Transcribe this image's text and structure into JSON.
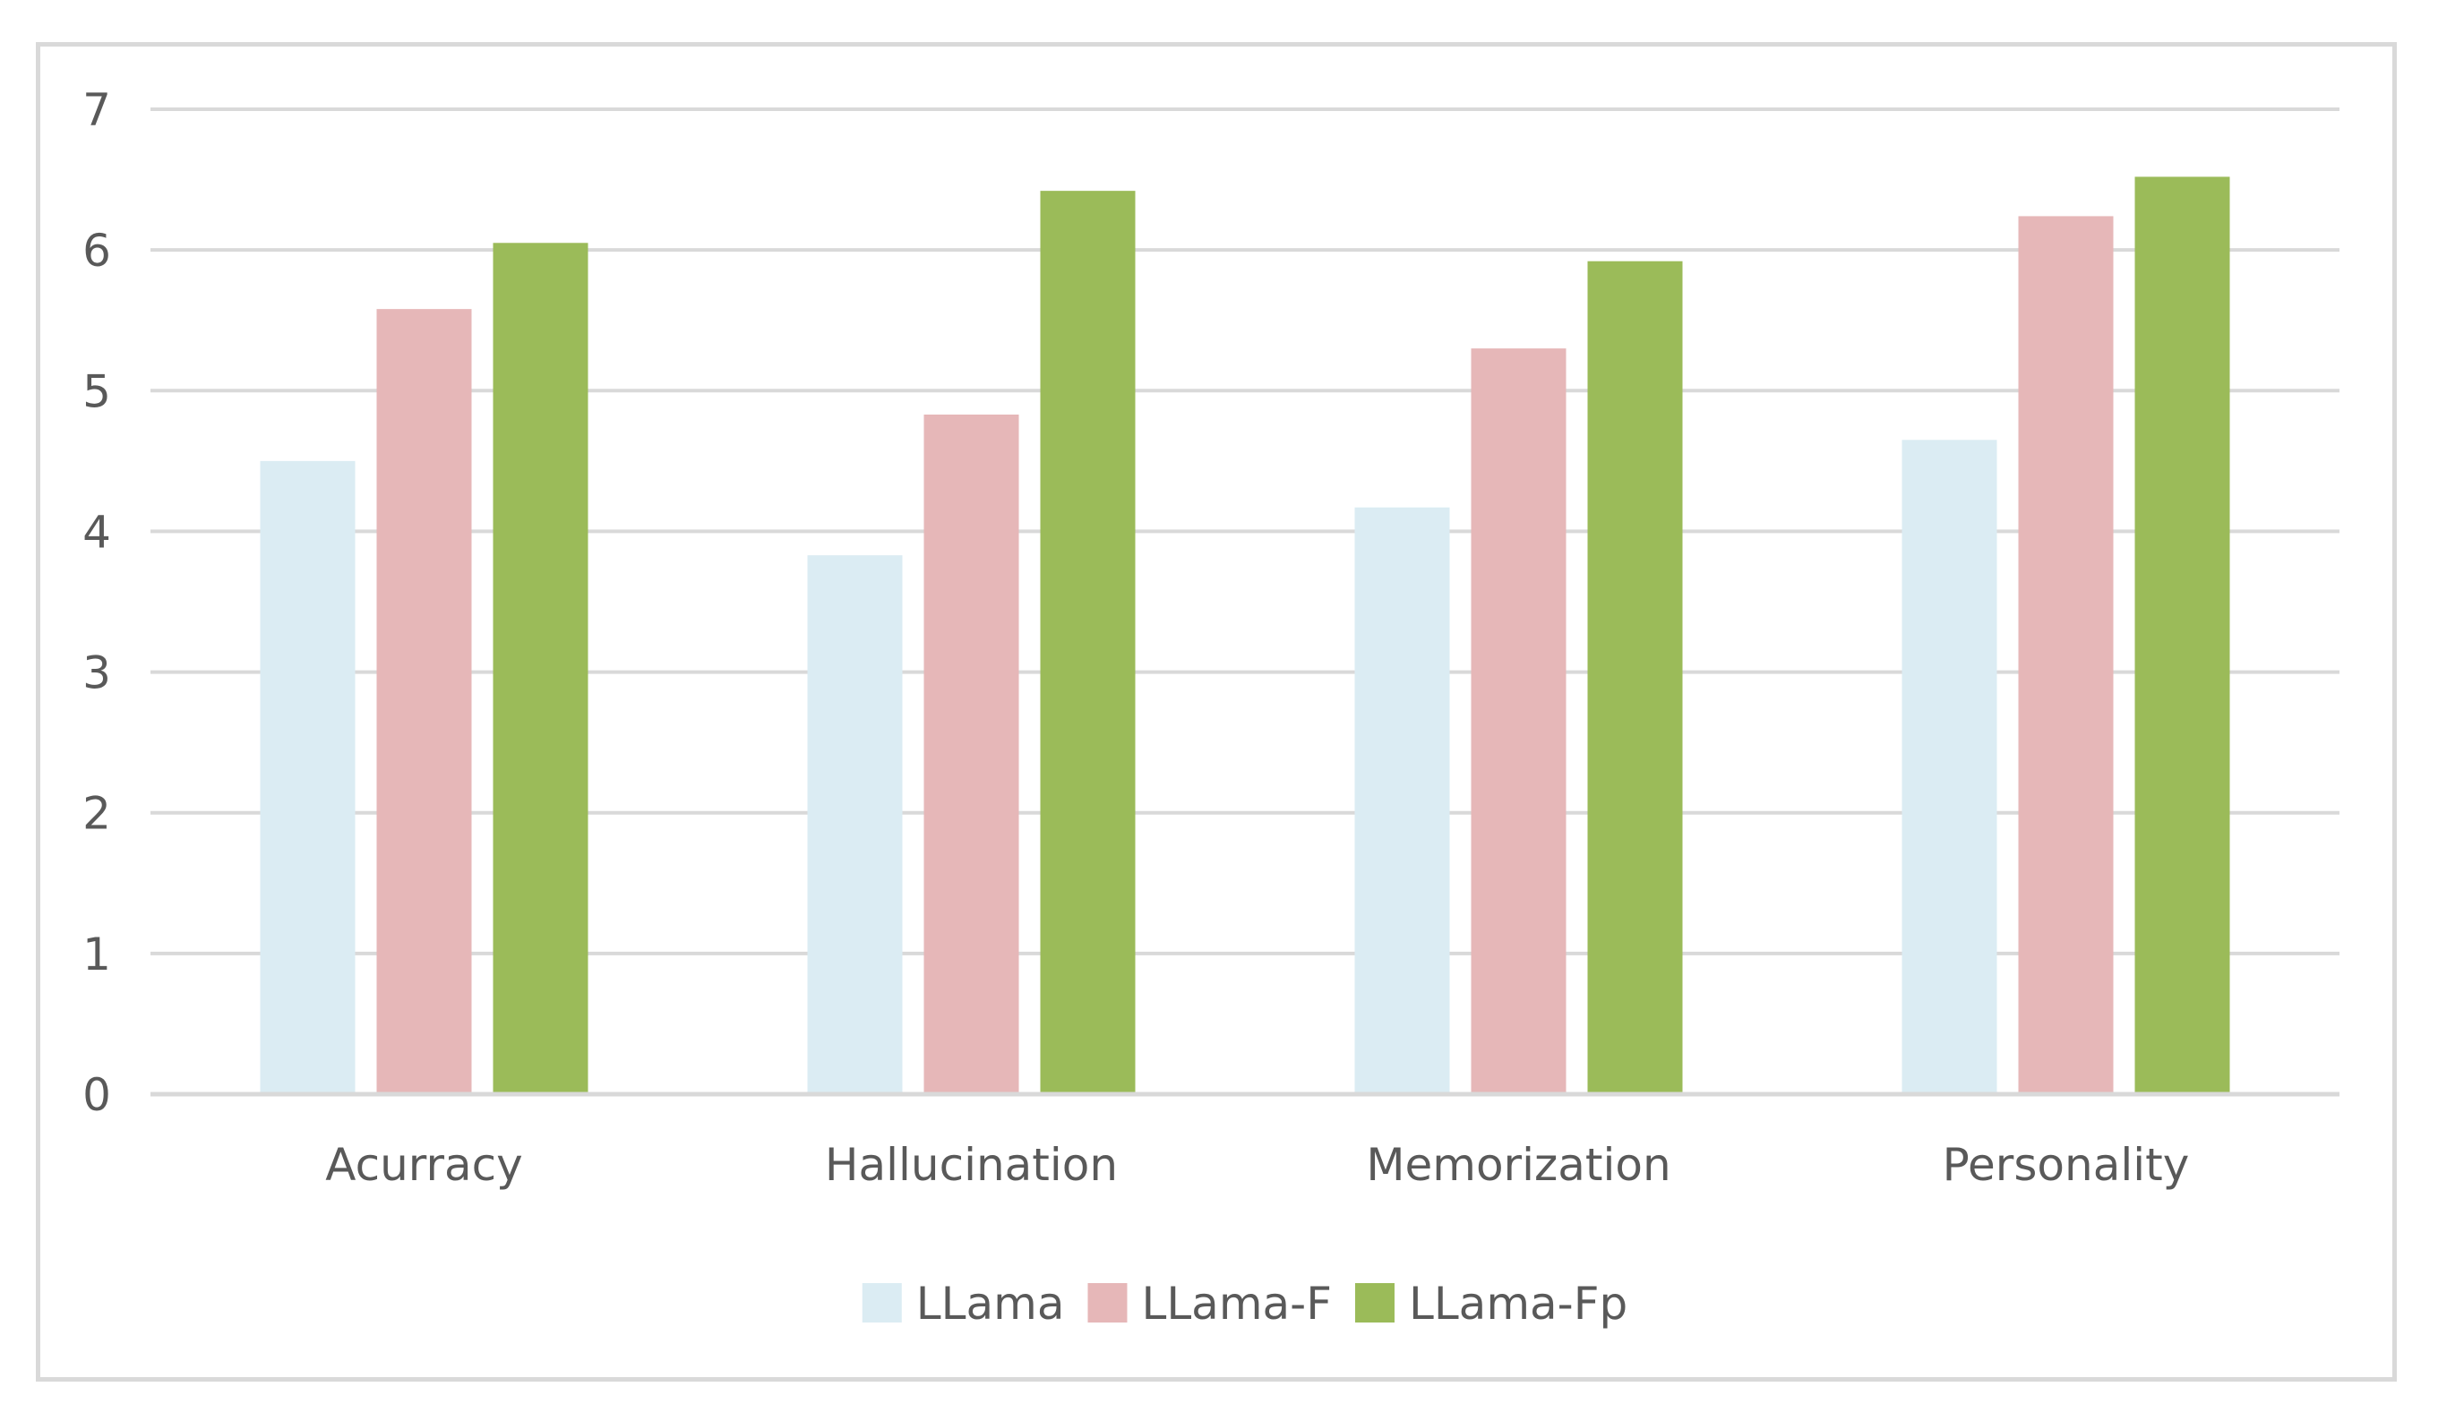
{
  "chart_data": {
    "type": "bar",
    "title": "",
    "xlabel": "",
    "ylabel": "",
    "categories": [
      "Acurracy",
      "Hallucination",
      "Memorization",
      "Personality"
    ],
    "series": [
      {
        "name": "LLama",
        "color": "#dbecf3",
        "values": [
          4.5,
          3.83,
          4.17,
          4.65
        ]
      },
      {
        "name": "LLama-F",
        "color": "#e6b7b8",
        "values": [
          5.58,
          4.83,
          5.3,
          6.24
        ]
      },
      {
        "name": "LLama-Fp",
        "color": "#9bbb59",
        "values": [
          6.05,
          6.42,
          5.92,
          6.52
        ]
      }
    ],
    "ylim": [
      0,
      7
    ],
    "yticks": [
      "0",
      "1",
      "2",
      "3",
      "4",
      "5",
      "6",
      "7"
    ],
    "grid": true,
    "legend": "bottom-center"
  }
}
